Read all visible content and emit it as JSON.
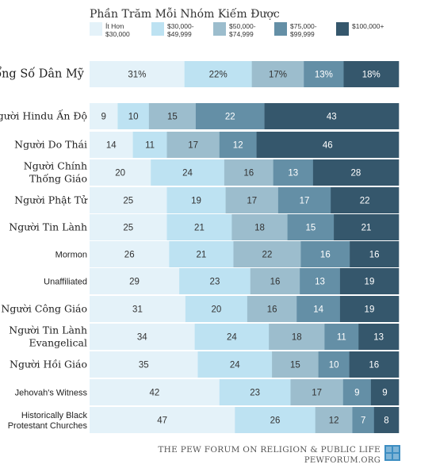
{
  "chart_data": {
    "type": "bar",
    "stacked": true,
    "orientation": "horizontal",
    "percent_scale": true,
    "title": "Phần Trăm Mỗi Nhóm Kiếm Được",
    "legend_position": "top",
    "series": [
      {
        "name": "Ít Hơn $30,000",
        "color": "#e4f2f9"
      },
      {
        "name": "$30,000- $49,999",
        "color": "#bde2f2"
      },
      {
        "name": "$50,000- $74,999",
        "color": "#9cbdcd"
      },
      {
        "name": "$75,000- $99,999",
        "color": "#648fa6"
      },
      {
        "name": "$100,000+",
        "color": "#35576c"
      }
    ],
    "rows": [
      {
        "label": "Tổng Số Dân Mỹ",
        "style": "total",
        "values": [
          31,
          22,
          17,
          13,
          18
        ],
        "value_labels": [
          "31%",
          "22%",
          "17%",
          "13%",
          "18%"
        ]
      },
      {
        "label": "Người Hindu Ấn Độ",
        "style": "serif",
        "values": [
          9,
          10,
          15,
          22,
          43
        ]
      },
      {
        "label": "Người Do Thái",
        "style": "serif",
        "values": [
          14,
          11,
          17,
          12,
          46
        ]
      },
      {
        "label": "Người Chính Thống Giáo",
        "label_lines": [
          "Người Chính",
          "Thống Giáo"
        ],
        "style": "serif",
        "values": [
          20,
          24,
          16,
          13,
          28
        ]
      },
      {
        "label": "Người Phật Tử",
        "style": "serif",
        "values": [
          25,
          19,
          17,
          17,
          22
        ]
      },
      {
        "label": "Người Tin Lành",
        "style": "serif",
        "values": [
          25,
          21,
          18,
          15,
          21
        ]
      },
      {
        "label": "Mormon",
        "style": "sans",
        "values": [
          26,
          21,
          22,
          16,
          16
        ]
      },
      {
        "label": "Unaffiliated",
        "style": "sans",
        "values": [
          29,
          23,
          16,
          13,
          19
        ]
      },
      {
        "label": "Người Công Giáo",
        "style": "serif",
        "values": [
          31,
          20,
          16,
          14,
          19
        ]
      },
      {
        "label": "Người Tin Lành Evangelical",
        "label_lines": [
          "Người Tin Lành",
          "Evangelical"
        ],
        "style": "serif",
        "values": [
          34,
          24,
          18,
          11,
          13
        ]
      },
      {
        "label": "Người Hồi Giáo",
        "style": "serif",
        "values": [
          35,
          24,
          15,
          10,
          16
        ]
      },
      {
        "label": "Jehovah's Witness",
        "style": "sans",
        "values": [
          42,
          23,
          17,
          9,
          9
        ]
      },
      {
        "label": "Historically Black Protestant Churches",
        "label_lines": [
          "Historically Black",
          "Protestant Churches"
        ],
        "style": "sans",
        "values": [
          47,
          26,
          12,
          7,
          8
        ]
      }
    ]
  },
  "legend": {
    "items": [
      {
        "lines": [
          "Ít Hơn",
          "$30,000"
        ]
      },
      {
        "lines": [
          "$30,000-",
          "$49,999"
        ]
      },
      {
        "lines": [
          "$50,000-",
          "$74,999"
        ]
      },
      {
        "lines": [
          "$75,000-",
          "$99,999"
        ]
      },
      {
        "lines": [
          "$100,000+"
        ]
      }
    ]
  },
  "footer": {
    "line1": "The Pew Forum on Religion & Public Life",
    "line2": "pewforum.org",
    "logo_color": "#3d8ec2"
  }
}
